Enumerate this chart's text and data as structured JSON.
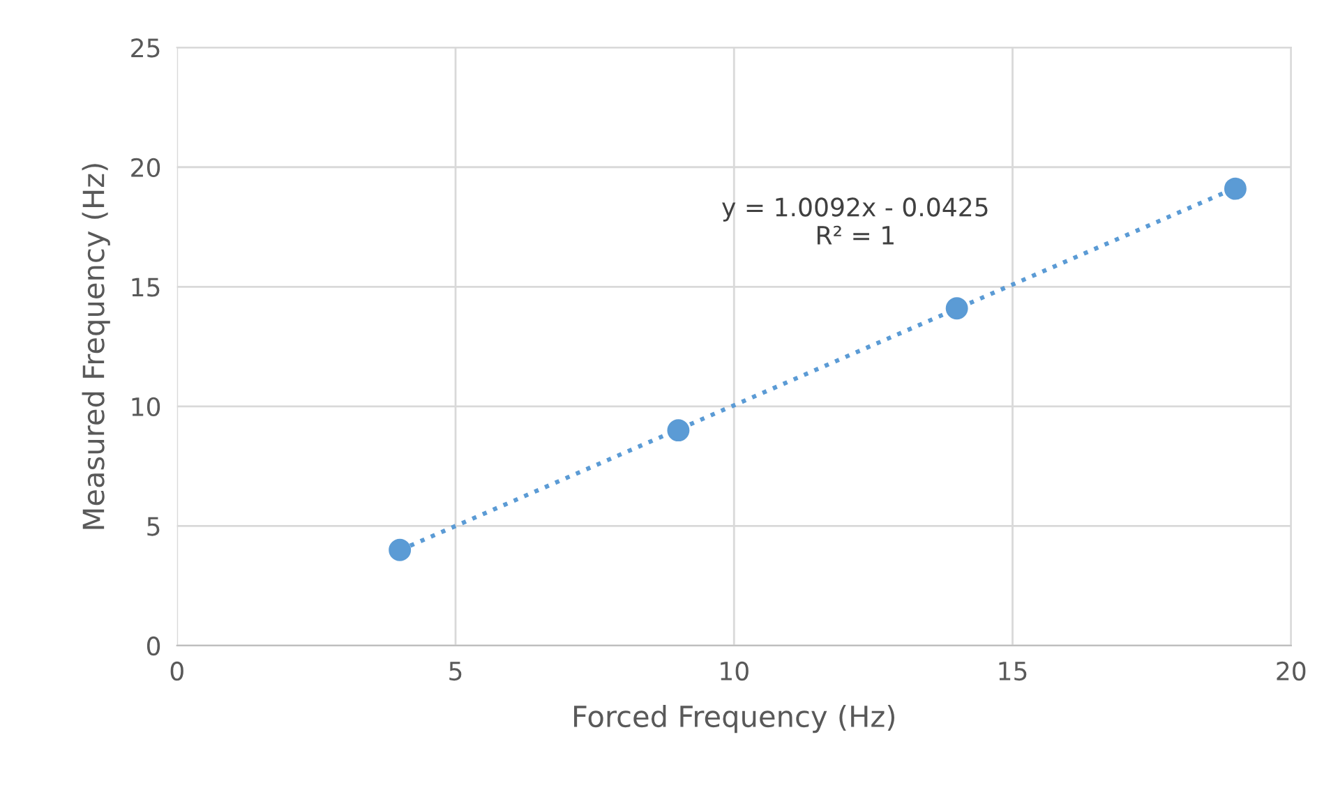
{
  "chart_data": {
    "type": "scatter",
    "xlabel": "Forced Frequency (Hz)",
    "ylabel": "Measured Frequency (Hz)",
    "xlim": [
      0,
      20
    ],
    "xticks": [
      0,
      5,
      10,
      15,
      20
    ],
    "ylim": [
      0,
      25
    ],
    "yticks": [
      0,
      5,
      10,
      15,
      20,
      25
    ],
    "grid": true,
    "x": [
      4,
      9,
      14,
      19
    ],
    "series": [
      {
        "color": "#5b9bd5",
        "marker": "circle",
        "values": [
          4,
          9,
          14.1,
          19.1
        ]
      },
      {
        "type": "line",
        "color": "#5b9bd5",
        "marker": "none",
        "line_style": "dotted",
        "x": [
          4,
          19
        ],
        "values": [
          3.99,
          19.13
        ]
      }
    ],
    "annotations": [
      "y = 1.0092x - 0.0425\nR² = 1"
    ]
  }
}
